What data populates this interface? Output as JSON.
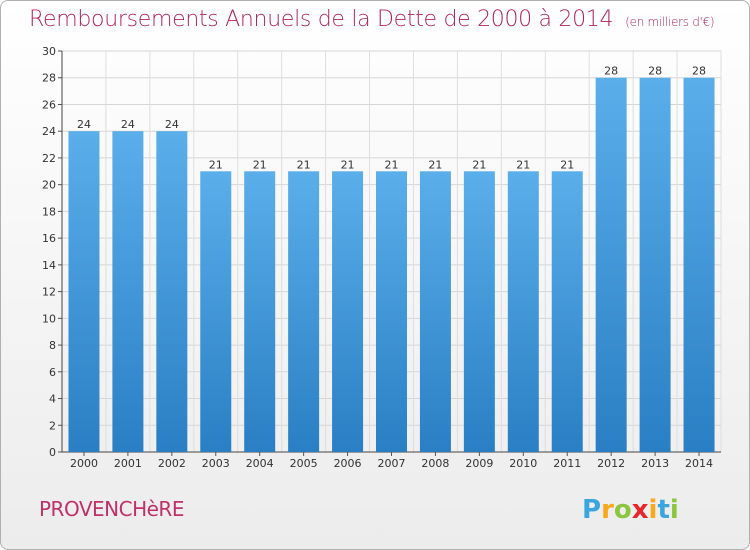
{
  "header": {
    "title": "Remboursements Annuels de la Dette de 2000 à 2014",
    "unit_note": "(en milliers d'€)"
  },
  "footer": {
    "commune": "PROVENCHèRE",
    "logo_text": "Proxiti",
    "logo_colors": [
      "#e8262a",
      "#f7a81b",
      "#3aa6dd",
      "#8cc63f"
    ]
  },
  "colors": {
    "bar_top": "#5aaeea",
    "bar_bottom": "#2a7fc4",
    "title": "#b0245e"
  },
  "chart_data": {
    "type": "bar",
    "title": "Remboursements Annuels de la Dette de 2000 à 2014",
    "xlabel": "",
    "ylabel": "",
    "categories": [
      "2000",
      "2001",
      "2002",
      "2003",
      "2004",
      "2005",
      "2006",
      "2007",
      "2008",
      "2009",
      "2010",
      "2011",
      "2012",
      "2013",
      "2014"
    ],
    "values": [
      24,
      24,
      24,
      21,
      21,
      21,
      21,
      21,
      21,
      21,
      21,
      21,
      28,
      28,
      28
    ],
    "ylim": [
      0,
      30
    ],
    "yticks": [
      0,
      2,
      4,
      6,
      8,
      10,
      12,
      14,
      16,
      18,
      20,
      22,
      24,
      26,
      28,
      30
    ],
    "grid": true,
    "legend": "none"
  }
}
